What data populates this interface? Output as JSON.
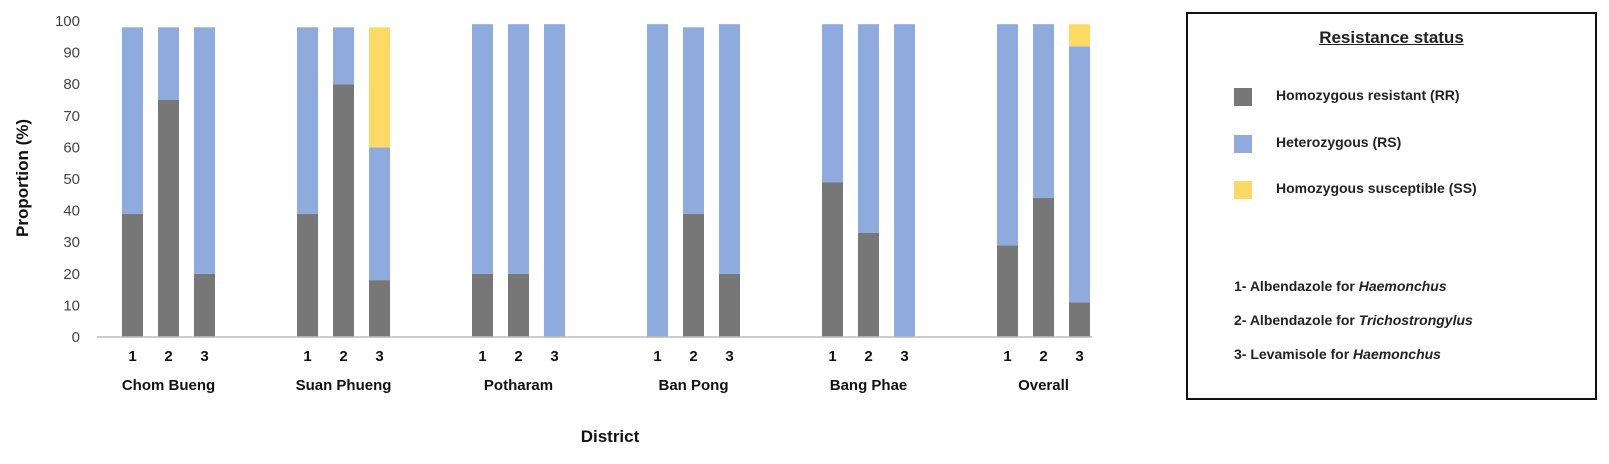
{
  "chart_data": {
    "type": "bar",
    "stacked": true,
    "xlabel": "District",
    "ylabel": "Proportion (%)",
    "ylim": [
      0,
      100
    ],
    "yticks": [
      0,
      10,
      20,
      30,
      40,
      50,
      60,
      70,
      80,
      90,
      100
    ],
    "grid": false,
    "legend_position": "right",
    "groups": [
      "Chom Bueng",
      "Suan Phueng",
      "Potharam",
      "Ban Pong",
      "Bang Phae",
      "Overall"
    ],
    "categories": [
      "1",
      "2",
      "3"
    ],
    "series": [
      {
        "name": "Homozygous resistant (RR)",
        "color": "#777777",
        "values": [
          [
            39,
            75,
            20
          ],
          [
            39,
            80,
            18
          ],
          [
            20,
            20,
            0
          ],
          [
            0,
            39,
            20
          ],
          [
            49,
            33,
            0
          ],
          [
            29,
            44,
            11
          ]
        ]
      },
      {
        "name": "Heterozygous (RS)",
        "color": "#8faadc",
        "values": [
          [
            59,
            23,
            78
          ],
          [
            59,
            18,
            42
          ],
          [
            79,
            79,
            99
          ],
          [
            99,
            59,
            79
          ],
          [
            50,
            66,
            99
          ],
          [
            70,
            55,
            81
          ]
        ]
      },
      {
        "name": "Homozygous susceptible (SS)",
        "color": "#ffd966",
        "values": [
          [
            0,
            0,
            0
          ],
          [
            0,
            0,
            38
          ],
          [
            0,
            0,
            0
          ],
          [
            0,
            0,
            0
          ],
          [
            0,
            0,
            0
          ],
          [
            0,
            0,
            7
          ]
        ]
      }
    ]
  },
  "legend": {
    "title": "Resistance status",
    "notes": [
      {
        "prefix": "1- Albendazole for ",
        "italic": "Haemonchus"
      },
      {
        "prefix": "2- Albendazole for ",
        "italic": "Trichostrongylus"
      },
      {
        "prefix": "3- Levamisole for ",
        "italic": "Haemonchus"
      }
    ]
  }
}
